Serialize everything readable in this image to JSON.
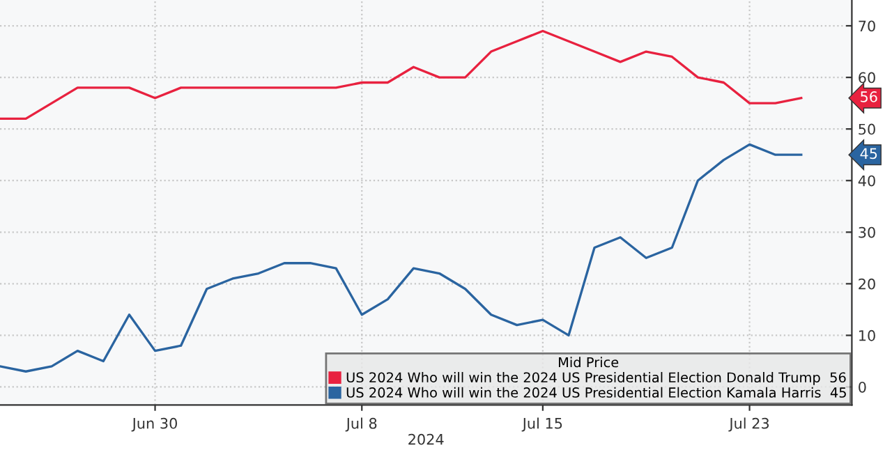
{
  "chart_data": {
    "type": "line",
    "x": [
      "2024-06-24",
      "2024-06-25",
      "2024-06-26",
      "2024-06-27",
      "2024-06-28",
      "2024-06-29",
      "2024-06-30",
      "2024-07-01",
      "2024-07-02",
      "2024-07-03",
      "2024-07-04",
      "2024-07-05",
      "2024-07-06",
      "2024-07-07",
      "2024-07-08",
      "2024-07-09",
      "2024-07-10",
      "2024-07-11",
      "2024-07-12",
      "2024-07-13",
      "2024-07-14",
      "2024-07-15",
      "2024-07-16",
      "2024-07-17",
      "2024-07-18",
      "2024-07-19",
      "2024-07-20",
      "2024-07-21",
      "2024-07-22",
      "2024-07-23",
      "2024-07-24",
      "2024-07-25"
    ],
    "series": [
      {
        "name": "US 2024 Who will win the 2024 US Presidential Election Donald Trump  56",
        "color": "#e8213f",
        "values": [
          52,
          52,
          55,
          58,
          58,
          58,
          56,
          58,
          58,
          58,
          58,
          58,
          58,
          58,
          59,
          59,
          62,
          60,
          60,
          65,
          67,
          69,
          67,
          65,
          63,
          65,
          64,
          60,
          59,
          55,
          55,
          56
        ]
      },
      {
        "name": "US 2024 Who will win the 2024 US Presidential Election Kamala Harris  45",
        "color": "#2a64a0",
        "values": [
          4,
          3,
          4,
          7,
          5,
          14,
          7,
          8,
          19,
          21,
          22,
          24,
          24,
          23,
          14,
          17,
          23,
          22,
          19,
          14,
          12,
          13,
          10,
          27,
          29,
          25,
          27,
          40,
          44,
          47,
          45,
          45
        ]
      }
    ],
    "xlabel": "2024",
    "legend_title": "Mid Price",
    "xlim": [
      "2024-06-24",
      "2024-07-26T23:00"
    ],
    "xticks": [
      {
        "value": "2024-06-30",
        "label": "Jun 30"
      },
      {
        "value": "2024-07-08",
        "label": "Jul 8"
      },
      {
        "value": "2024-07-15",
        "label": "Jul 15"
      },
      {
        "value": "2024-07-23",
        "label": "Jul 23"
      }
    ],
    "ylim": [
      -3.5,
      75
    ],
    "yticks": [
      0,
      10,
      20,
      30,
      40,
      50,
      60,
      70
    ],
    "annotations": [
      "56",
      "45"
    ],
    "grid": true,
    "legend": "bottom right",
    "marker": "none",
    "line_style": "solid"
  }
}
